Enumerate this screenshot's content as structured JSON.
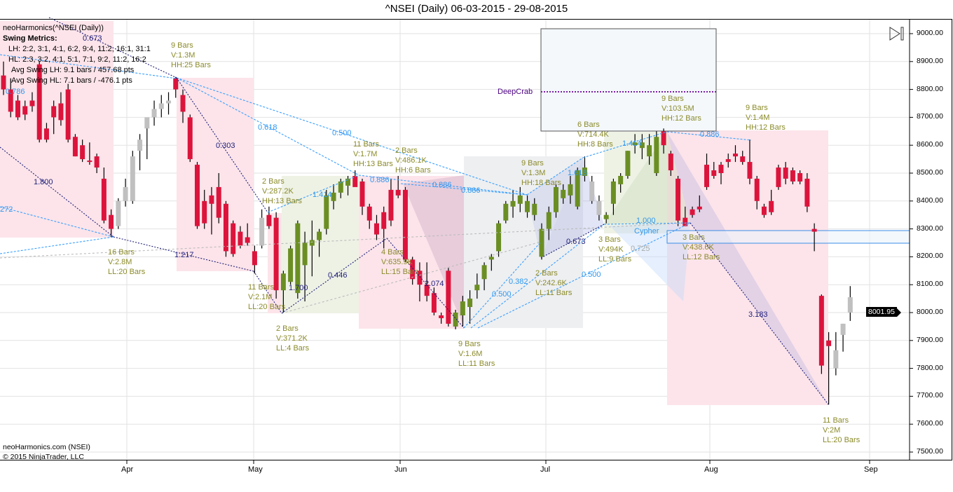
{
  "title": "^NSEI (Daily)  06-03-2015 - 29-08-2015",
  "indicator_label": "neoHarmonics(^NSEI (Daily))",
  "metrics": {
    "heading": "Swing Metrics:",
    "lh": "LH: 2:2, 3:1, 4:1, 6:2, 9:4, 11:2, 16:1, 31:1",
    "hl": "HL: 2:3, 3:2, 4:1, 5:1, 7:1, 9:2, 11:2, 16:2",
    "avg_lh": "Avg Swing LH: 9.1 bars / 457.68 pts",
    "avg_hl": "Avg Swing HL: 7.1 bars / -476.1 pts"
  },
  "footer": {
    "source": "neoHarmonics.com (NSEI)",
    "copyright": "© 2015 NinjaTrader, LLC"
  },
  "last_price": "8001.95",
  "patterns": {
    "deepcrab": "DeepCrab",
    "cypher": "Cypher"
  },
  "colors": {
    "bear": "#dc143c",
    "bull": "#6b8e23",
    "neutral": "#c0c0c0",
    "annotation": "#8b8b2b",
    "ratio": "#2f98f0",
    "swing": "#22207a"
  },
  "annotations": [
    [
      "9 Bars",
      "V:1.3M",
      "HH:25 Bars"
    ],
    [
      "16 Bars",
      "V:2.8M",
      "LL:20 Bars"
    ],
    [
      "2 Bars",
      "V:287.2K",
      "HH:13 Bars"
    ],
    [
      "11 Bars",
      "V:2.1M",
      "LL:20 Bars"
    ],
    [
      "2 Bars",
      "V:371.2K",
      "LL:4 Bars"
    ],
    [
      "11 Bars",
      "V:1.7M",
      "HH:13 Bars"
    ],
    [
      "2 Bars",
      "V:486.1K",
      "HH:6 Bars"
    ],
    [
      "4 Bars",
      "V:635.9K",
      "LL:15 Bars"
    ],
    [
      "9 Bars",
      "V:1.6M",
      "LL:11 Bars"
    ],
    [
      "9 Bars",
      "V:1.3M",
      "HH:18 Bars"
    ],
    [
      "2 Bars",
      "V:242.6K",
      "LL:11 Bars"
    ],
    [
      "6 Bars",
      "V:714.4K",
      "HH:8 Bars"
    ],
    [
      "3 Bars",
      "V:494K",
      "LL:9 Bars"
    ],
    [
      "9 Bars",
      "V:103.5M",
      "HH:12 Bars"
    ],
    [
      "9 Bars",
      "V:1.4M",
      "HH:12 Bars"
    ],
    [
      "3 Bars",
      "V:438.6K",
      "LL:12 Bars"
    ],
    [
      "11 Bars",
      "V:2M",
      "LL:20 Bars"
    ]
  ],
  "ratios": [
    "0.673",
    "0.786",
    "1.800",
    "272",
    "1.217",
    "0.303",
    "0.618",
    "0.500",
    "1.414",
    "1.700",
    "0.446",
    "0.886",
    "0.886",
    "0.886",
    "2.074",
    "0.500",
    "0.382",
    "0.500",
    "1.618",
    "0.673",
    "1.414",
    "0.725",
    "1.000",
    "0.886",
    "3.183"
  ],
  "chart_data": {
    "type": "candlestick",
    "title": "^NSEI (Daily)  06-03-2015 - 29-08-2015",
    "ylim": [
      7450,
      9050
    ],
    "yticks": [
      "9000.00",
      "8900.00",
      "8800.00",
      "8700.00",
      "8600.00",
      "8500.00",
      "8400.00",
      "8300.00",
      "8200.00",
      "8100.00",
      "8000.00",
      "7900.00",
      "7800.00",
      "7700.00",
      "7600.00",
      "7500.00"
    ],
    "xticks": [
      "Apr",
      "May",
      "Jun",
      "Jul",
      "Aug",
      "Sep"
    ],
    "grid": true,
    "candle_fields": [
      "open",
      "high",
      "low",
      "close",
      "color"
    ],
    "candles": [
      [
        8850,
        8900,
        8780,
        8800,
        "r"
      ],
      [
        8800,
        8840,
        8700,
        8720,
        "r"
      ],
      [
        8760,
        8780,
        8690,
        8700,
        "r"
      ],
      [
        8740,
        8760,
        8690,
        8710,
        "r"
      ],
      [
        8760,
        8790,
        8720,
        8740,
        "r"
      ],
      [
        8890,
        8900,
        8610,
        8620,
        "r"
      ],
      [
        8660,
        8680,
        8610,
        8620,
        "r"
      ],
      [
        8740,
        8760,
        8640,
        8700,
        "r"
      ],
      [
        8750,
        8790,
        8670,
        8690,
        "r"
      ],
      [
        8800,
        8820,
        8610,
        8620,
        "r"
      ],
      [
        8630,
        8640,
        8560,
        8560,
        "r"
      ],
      [
        8600,
        8620,
        8540,
        8550,
        "r"
      ],
      [
        8545,
        8610,
        8530,
        8540,
        "r"
      ],
      [
        8560,
        8570,
        8500,
        8520,
        "r"
      ],
      [
        8480,
        8520,
        8320,
        8330,
        "r"
      ],
      [
        8350,
        8370,
        8270,
        8300,
        "r"
      ],
      [
        8310,
        8410,
        8300,
        8400,
        "s"
      ],
      [
        8400,
        8480,
        8380,
        8450,
        "s"
      ],
      [
        8400,
        8580,
        8390,
        8560,
        "s"
      ],
      [
        8580,
        8640,
        8510,
        8620,
        "s"
      ],
      [
        8660,
        8690,
        8550,
        8700,
        "s"
      ],
      [
        8700,
        8760,
        8670,
        8730,
        "s"
      ],
      [
        8730,
        8780,
        8700,
        8750,
        "s"
      ],
      [
        8750,
        8790,
        8710,
        8760,
        "s"
      ],
      [
        8840,
        8845,
        8770,
        8800,
        "r"
      ],
      [
        8780,
        8800,
        8680,
        8720,
        "r"
      ],
      [
        8700,
        8710,
        8540,
        8550,
        "r"
      ],
      [
        8530,
        8540,
        8300,
        8310,
        "r"
      ],
      [
        8400,
        8440,
        8300,
        8320,
        "r"
      ],
      [
        8420,
        8450,
        8280,
        8390,
        "r"
      ],
      [
        8450,
        8500,
        8320,
        8340,
        "r"
      ],
      [
        8390,
        8400,
        8200,
        8220,
        "r"
      ],
      [
        8320,
        8330,
        8200,
        8210,
        "r"
      ],
      [
        8290,
        8310,
        8230,
        8240,
        "r"
      ],
      [
        8270,
        8320,
        8240,
        8250,
        "r"
      ],
      [
        8220,
        8240,
        8140,
        8170,
        "r"
      ],
      [
        8240,
        8370,
        8230,
        8340,
        "s"
      ],
      [
        8350,
        8380,
        8300,
        8310,
        "r"
      ],
      [
        8340,
        8360,
        8050,
        8080,
        "r"
      ],
      [
        8080,
        8150,
        8000,
        8140,
        "g"
      ],
      [
        8110,
        8240,
        8100,
        8230,
        "g"
      ],
      [
        8070,
        8330,
        8050,
        8320,
        "g"
      ],
      [
        8170,
        8290,
        8040,
        8250,
        "g"
      ],
      [
        8240,
        8330,
        8130,
        8260,
        "g"
      ],
      [
        8260,
        8300,
        8200,
        8290,
        "g"
      ],
      [
        8300,
        8440,
        8280,
        8420,
        "g"
      ],
      [
        8400,
        8460,
        8370,
        8430,
        "g"
      ],
      [
        8430,
        8480,
        8410,
        8470,
        "g"
      ],
      [
        8455,
        8490,
        8420,
        8480,
        "g"
      ],
      [
        8490,
        8510,
        8460,
        8450,
        "r"
      ],
      [
        8470,
        8480,
        8350,
        8380,
        "r"
      ],
      [
        8380,
        8390,
        8300,
        8330,
        "r"
      ],
      [
        8320,
        8350,
        8260,
        8280,
        "r"
      ],
      [
        8360,
        8380,
        8230,
        8300,
        "r"
      ],
      [
        8440,
        8480,
        8310,
        8330,
        "r"
      ],
      [
        8440,
        8490,
        8410,
        8420,
        "r"
      ],
      [
        8440,
        8450,
        8180,
        8190,
        "r"
      ],
      [
        8190,
        8200,
        8100,
        8120,
        "r"
      ],
      [
        8150,
        8180,
        8040,
        8100,
        "r"
      ],
      [
        8100,
        8180,
        8040,
        8060,
        "r"
      ],
      [
        8070,
        8090,
        7990,
        8000,
        "r"
      ],
      [
        7990,
        8000,
        7960,
        7980,
        "r"
      ],
      [
        8150,
        8160,
        7950,
        7960,
        "r"
      ],
      [
        7950,
        8010,
        7940,
        8000,
        "g"
      ],
      [
        7990,
        8060,
        7950,
        8040,
        "g"
      ],
      [
        8020,
        8080,
        7960,
        8050,
        "g"
      ],
      [
        8080,
        8140,
        8050,
        8100,
        "g"
      ],
      [
        8120,
        8180,
        8080,
        8170,
        "g"
      ],
      [
        8190,
        8210,
        8150,
        8200,
        "g"
      ],
      [
        8220,
        8330,
        8200,
        8320,
        "g"
      ],
      [
        8330,
        8400,
        8320,
        8390,
        "g"
      ],
      [
        8380,
        8440,
        8340,
        8400,
        "g"
      ],
      [
        8390,
        8450,
        8360,
        8420,
        "g"
      ],
      [
        8360,
        8420,
        8340,
        8400,
        "g"
      ],
      [
        8390,
        8410,
        8330,
        8350,
        "g"
      ],
      [
        8200,
        8320,
        8190,
        8300,
        "g"
      ],
      [
        8300,
        8380,
        8260,
        8360,
        "g"
      ],
      [
        8360,
        8460,
        8340,
        8450,
        "g"
      ],
      [
        8410,
        8460,
        8390,
        8440,
        "g"
      ],
      [
        8420,
        8490,
        8390,
        8460,
        "g"
      ],
      [
        8380,
        8520,
        8370,
        8510,
        "g"
      ],
      [
        8490,
        8560,
        8470,
        8520,
        "g"
      ],
      [
        8470,
        8490,
        8390,
        8400,
        "s"
      ],
      [
        8400,
        8420,
        8330,
        8350,
        "s"
      ],
      [
        8335,
        8360,
        8320,
        8350,
        "g"
      ],
      [
        8390,
        8480,
        8350,
        8470,
        "g"
      ],
      [
        8460,
        8500,
        8430,
        8490,
        "g"
      ],
      [
        8490,
        8580,
        8480,
        8580,
        "g"
      ],
      [
        8600,
        8640,
        8570,
        8610,
        "g"
      ],
      [
        8590,
        8640,
        8550,
        8610,
        "g"
      ],
      [
        8560,
        8640,
        8530,
        8600,
        "g"
      ],
      [
        8500,
        8650,
        8490,
        8630,
        "g"
      ],
      [
        8650,
        8660,
        8570,
        8600,
        "r"
      ],
      [
        8570,
        8580,
        8490,
        8510,
        "r"
      ],
      [
        8480,
        8490,
        8310,
        8330,
        "r"
      ],
      [
        8340,
        8380,
        8310,
        8310,
        "r"
      ],
      [
        8370,
        8380,
        8340,
        8350,
        "r"
      ],
      [
        8380,
        8420,
        8360,
        8370,
        "r"
      ],
      [
        8530,
        8570,
        8440,
        8450,
        "r"
      ],
      [
        8510,
        8540,
        8480,
        8490,
        "r"
      ],
      [
        8530,
        8540,
        8460,
        8500,
        "r"
      ],
      [
        8550,
        8570,
        8520,
        8540,
        "r"
      ],
      [
        8570,
        8600,
        8540,
        8560,
        "r"
      ],
      [
        8560,
        8580,
        8530,
        8540,
        "r"
      ],
      [
        8540,
        8620,
        8460,
        8480,
        "r"
      ],
      [
        8480,
        8490,
        8370,
        8400,
        "r"
      ],
      [
        8380,
        8390,
        8340,
        8350,
        "r"
      ],
      [
        8400,
        8440,
        8350,
        8360,
        "r"
      ],
      [
        8520,
        8530,
        8440,
        8450,
        "r"
      ],
      [
        8520,
        8540,
        8460,
        8480,
        "r"
      ],
      [
        8510,
        8520,
        8460,
        8470,
        "r"
      ],
      [
        8500,
        8510,
        8460,
        8470,
        "r"
      ],
      [
        8480,
        8500,
        8360,
        8380,
        "r"
      ],
      [
        8300,
        8320,
        8220,
        8290,
        "r"
      ],
      [
        8060,
        8065,
        7780,
        7810,
        "r"
      ],
      [
        7900,
        7930,
        7670,
        7880,
        "r"
      ],
      [
        7800,
        7930,
        7775,
        7865,
        "s"
      ],
      [
        7920,
        7960,
        7860,
        7960,
        "s"
      ],
      [
        8000,
        8095,
        7970,
        8055,
        "s"
      ]
    ]
  }
}
